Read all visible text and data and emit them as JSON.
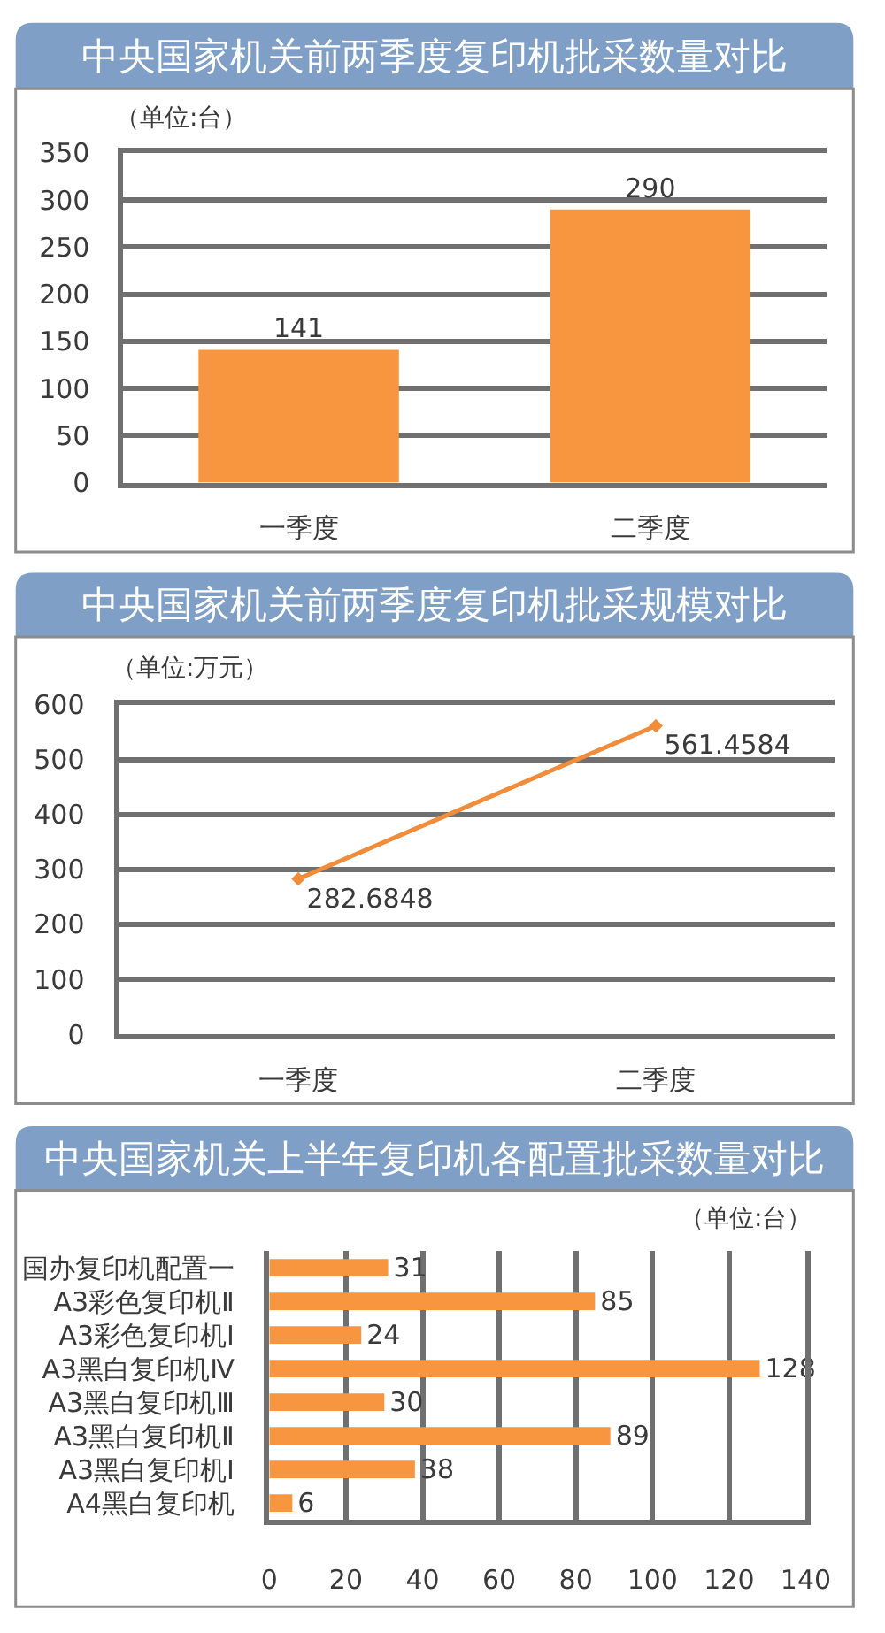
{
  "chart_data": [
    {
      "type": "bar",
      "title": "中央国家机关前两季度复印机批采数量对比",
      "annotations": [
        "（单位:台）"
      ],
      "categories": [
        "一季度",
        "二季度"
      ],
      "values": [
        141,
        290
      ],
      "color": "#f7963f",
      "ylim": [
        0,
        350
      ],
      "yticks": [
        0,
        50,
        100,
        150,
        200,
        250,
        300,
        350
      ],
      "grid": "y",
      "data_labels": true
    },
    {
      "type": "line",
      "title": "中央国家机关前两季度复印机批采规模对比",
      "annotations": [
        "（单位:万元）"
      ],
      "categories": [
        "一季度",
        "二季度"
      ],
      "values": [
        282.6848,
        561.4584
      ],
      "color": "#f08c3a",
      "ylim": [
        0,
        600
      ],
      "yticks": [
        0,
        100,
        200,
        300,
        400,
        500,
        600
      ],
      "grid": "y",
      "marker": "diamond",
      "line_style": "solid",
      "data_labels": true
    },
    {
      "type": "bar",
      "orientation": "horizontal",
      "title": "中央国家机关上半年复印机各配置批采数量对比",
      "annotations": [
        "（单位:台）"
      ],
      "categories": [
        "国办复印机配置一",
        "A3彩色复印机Ⅱ",
        "A3彩色复印机Ⅰ",
        "A3黑白复印机Ⅳ",
        "A3黑白复印机Ⅲ",
        "A3黑白复印机Ⅱ",
        "A3黑白复印机Ⅰ",
        "A4黑白复印机"
      ],
      "values": [
        31,
        85,
        24,
        128,
        30,
        89,
        38,
        6
      ],
      "color": "#f7963f",
      "xlim": [
        0,
        140
      ],
      "xticks": [
        0,
        20,
        40,
        60,
        80,
        100,
        120,
        140
      ],
      "grid": "x",
      "data_labels": true
    }
  ]
}
